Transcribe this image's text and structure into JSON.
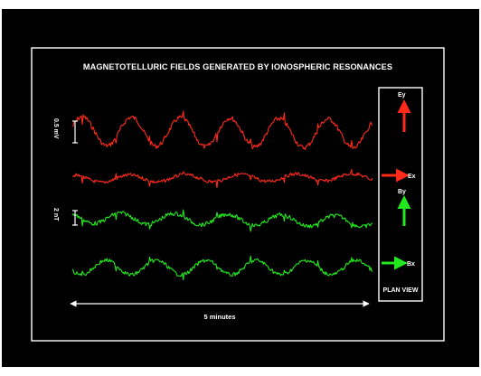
{
  "title": "MAGNETOTELLURIC  FIELDS GENERATED BY IONOSPHERIC RESONANCES",
  "scale_labels": {
    "top": "0.5 mV",
    "bottom": "2 nT"
  },
  "time_label": "5 minutes",
  "legend": {
    "ey": "Ey",
    "ex": "Ex",
    "by": "By",
    "bx": "Bx",
    "caption": "PLAN VIEW"
  },
  "colors": {
    "background": "#000000",
    "frame": "#ffffff",
    "electric": "#ff2a1a",
    "magnetic": "#22e81e"
  },
  "chart_data": {
    "type": "line",
    "title": "MAGNETOTELLURIC  FIELDS GENERATED BY IONOSPHERIC RESONANCES",
    "xlabel": "5 minutes",
    "x_range_minutes": [
      0,
      5
    ],
    "grid": false,
    "legend_placement": "right",
    "series": [
      {
        "name": "Ey",
        "color": "#ff2a1a",
        "cycles": 6.1,
        "phase": 0.3,
        "amplitude": 16,
        "noise": 3.2,
        "drift": -3
      },
      {
        "name": "Ex",
        "color": "#ff2a1a",
        "cycles": 5.4,
        "phase": 1.4,
        "amplitude": 4,
        "noise": 2.4,
        "drift": 2
      },
      {
        "name": "By",
        "color": "#22e81e",
        "cycles": 5.6,
        "phase": 2.2,
        "amplitude": 6,
        "noise": 2.8,
        "drift": -4
      },
      {
        "name": "Bx",
        "color": "#22e81e",
        "cycles": 6.0,
        "phase": 3.6,
        "amplitude": 8,
        "noise": 2.6,
        "drift": 0
      }
    ]
  }
}
